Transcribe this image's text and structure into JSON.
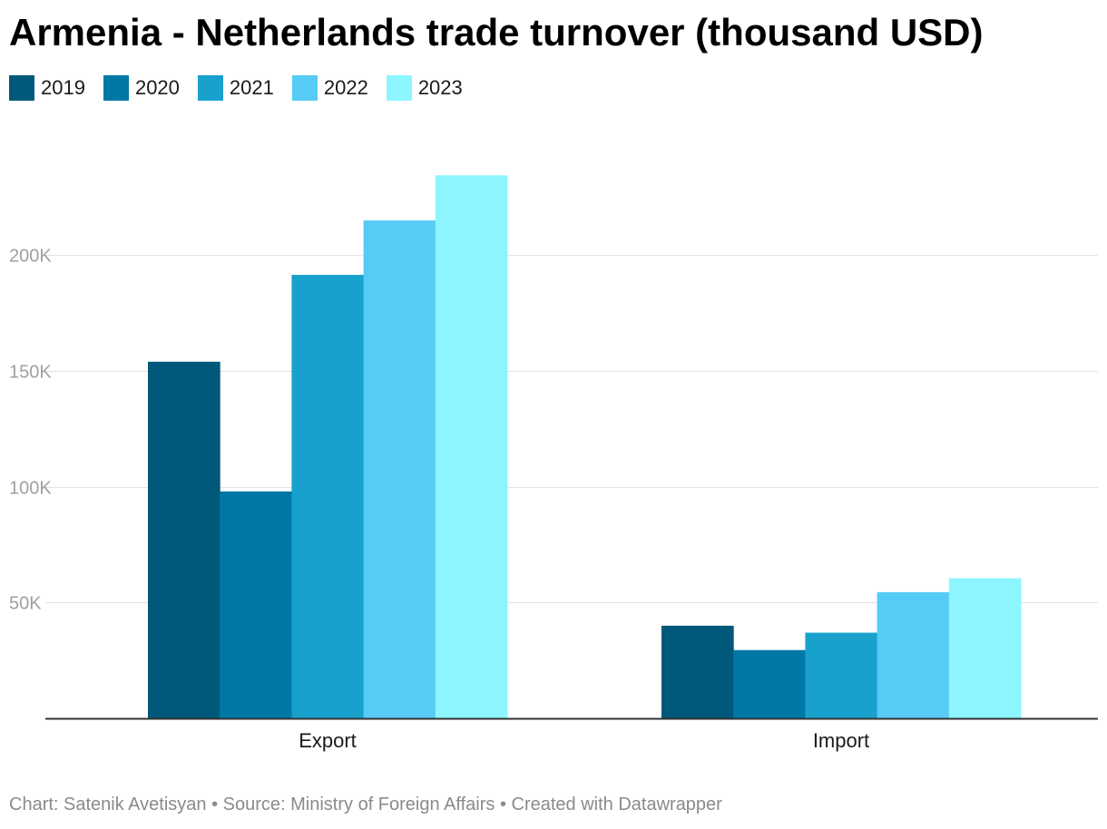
{
  "chart_data": {
    "type": "bar",
    "title": "Armenia - Netherlands trade turnover (thousand USD)",
    "categories": [
      "Export",
      "Import"
    ],
    "series": [
      {
        "name": "2019",
        "color": "#00587a",
        "values": [
          154000,
          40000
        ]
      },
      {
        "name": "2020",
        "color": "#0078a6",
        "values": [
          98000,
          29500
        ]
      },
      {
        "name": "2021",
        "color": "#18a1cd",
        "values": [
          191500,
          37000
        ]
      },
      {
        "name": "2022",
        "color": "#56cbf5",
        "values": [
          215000,
          54500
        ]
      },
      {
        "name": "2023",
        "color": "#8cf5ff",
        "values": [
          234500,
          60500
        ]
      }
    ],
    "y_ticks": [
      {
        "value": 50000,
        "label": "50K"
      },
      {
        "value": 100000,
        "label": "100K"
      },
      {
        "value": 150000,
        "label": "150K"
      },
      {
        "value": 200000,
        "label": "200K"
      }
    ],
    "ylim": [
      0,
      235000
    ],
    "grid": true,
    "legend_position": "top-left",
    "xlabel": "",
    "ylabel": ""
  },
  "footer": {
    "credit": "Chart: Satenik Avetisyan • Source: Ministry of Foreign Affairs • Created with Datawrapper"
  }
}
